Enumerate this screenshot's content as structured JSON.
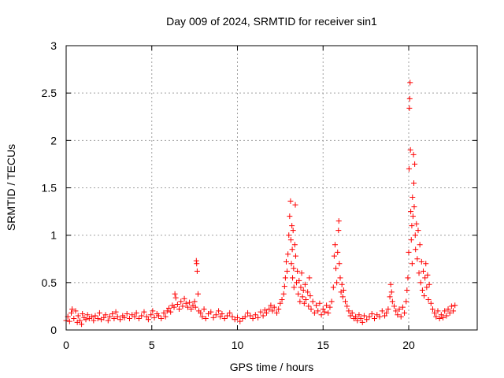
{
  "chart_data": {
    "type": "scatter",
    "title": "Day 009 of 2024, SRMTID for receiver sin1",
    "xlabel": "GPS time / hours",
    "ylabel": "SRMTID / TECUs",
    "xlim": [
      0,
      24
    ],
    "ylim": [
      0,
      3
    ],
    "xticks": [
      0,
      5,
      10,
      15,
      20
    ],
    "xtick_labels": [
      "0",
      "5",
      "10",
      "15",
      "20"
    ],
    "yticks": [
      0,
      0.5,
      1,
      1.5,
      2,
      2.5,
      3
    ],
    "ytick_labels": [
      "0",
      "0.5",
      "1",
      "1.5",
      "2",
      "2.5",
      "3"
    ],
    "grid": true,
    "marker": "+",
    "series": [
      {
        "name": "sin1",
        "color": "#ff0000",
        "points": [
          [
            0.0,
            0.1
          ],
          [
            0.1,
            0.14
          ],
          [
            0.2,
            0.09
          ],
          [
            0.3,
            0.18
          ],
          [
            0.35,
            0.22
          ],
          [
            0.45,
            0.12
          ],
          [
            0.55,
            0.2
          ],
          [
            0.65,
            0.08
          ],
          [
            0.7,
            0.15
          ],
          [
            0.8,
            0.1
          ],
          [
            0.9,
            0.06
          ],
          [
            0.95,
            0.17
          ],
          [
            1.05,
            0.13
          ],
          [
            1.15,
            0.11
          ],
          [
            1.25,
            0.16
          ],
          [
            1.35,
            0.12
          ],
          [
            1.5,
            0.14
          ],
          [
            1.6,
            0.1
          ],
          [
            1.7,
            0.15
          ],
          [
            1.85,
            0.12
          ],
          [
            1.95,
            0.18
          ],
          [
            2.05,
            0.11
          ],
          [
            2.2,
            0.13
          ],
          [
            2.3,
            0.16
          ],
          [
            2.45,
            0.1
          ],
          [
            2.55,
            0.14
          ],
          [
            2.7,
            0.17
          ],
          [
            2.8,
            0.12
          ],
          [
            2.9,
            0.19
          ],
          [
            3.0,
            0.14
          ],
          [
            3.15,
            0.11
          ],
          [
            3.3,
            0.15
          ],
          [
            3.4,
            0.13
          ],
          [
            3.55,
            0.17
          ],
          [
            3.7,
            0.12
          ],
          [
            3.85,
            0.16
          ],
          [
            4.0,
            0.14
          ],
          [
            4.1,
            0.18
          ],
          [
            4.25,
            0.12
          ],
          [
            4.4,
            0.15
          ],
          [
            4.55,
            0.19
          ],
          [
            4.7,
            0.14
          ],
          [
            4.8,
            0.11
          ],
          [
            4.95,
            0.16
          ],
          [
            5.05,
            0.2
          ],
          [
            5.15,
            0.13
          ],
          [
            5.3,
            0.17
          ],
          [
            5.4,
            0.15
          ],
          [
            5.55,
            0.12
          ],
          [
            5.7,
            0.18
          ],
          [
            5.8,
            0.14
          ],
          [
            5.9,
            0.2
          ],
          [
            6.0,
            0.23
          ],
          [
            6.1,
            0.19
          ],
          [
            6.2,
            0.26
          ],
          [
            6.3,
            0.24
          ],
          [
            6.35,
            0.38
          ],
          [
            6.4,
            0.34
          ],
          [
            6.5,
            0.27
          ],
          [
            6.6,
            0.22
          ],
          [
            6.7,
            0.3
          ],
          [
            6.8,
            0.25
          ],
          [
            6.9,
            0.33
          ],
          [
            7.0,
            0.28
          ],
          [
            7.1,
            0.24
          ],
          [
            7.2,
            0.29
          ],
          [
            7.3,
            0.22
          ],
          [
            7.4,
            0.26
          ],
          [
            7.5,
            0.3
          ],
          [
            7.55,
            0.24
          ],
          [
            7.6,
            0.73
          ],
          [
            7.62,
            0.7
          ],
          [
            7.65,
            0.62
          ],
          [
            7.7,
            0.38
          ],
          [
            7.75,
            0.2
          ],
          [
            7.85,
            0.18
          ],
          [
            7.95,
            0.14
          ],
          [
            8.05,
            0.22
          ],
          [
            8.15,
            0.12
          ],
          [
            8.3,
            0.17
          ],
          [
            8.45,
            0.19
          ],
          [
            8.6,
            0.13
          ],
          [
            8.75,
            0.16
          ],
          [
            8.9,
            0.2
          ],
          [
            9.0,
            0.14
          ],
          [
            9.1,
            0.17
          ],
          [
            9.25,
            0.12
          ],
          [
            9.4,
            0.15
          ],
          [
            9.55,
            0.18
          ],
          [
            9.7,
            0.14
          ],
          [
            9.85,
            0.11
          ],
          [
            10.0,
            0.13
          ],
          [
            10.15,
            0.09
          ],
          [
            10.3,
            0.12
          ],
          [
            10.45,
            0.14
          ],
          [
            10.6,
            0.18
          ],
          [
            10.75,
            0.15
          ],
          [
            10.9,
            0.12
          ],
          [
            11.05,
            0.16
          ],
          [
            11.2,
            0.13
          ],
          [
            11.35,
            0.19
          ],
          [
            11.5,
            0.15
          ],
          [
            11.6,
            0.21
          ],
          [
            11.7,
            0.18
          ],
          [
            11.85,
            0.22
          ],
          [
            11.95,
            0.26
          ],
          [
            12.05,
            0.2
          ],
          [
            12.15,
            0.24
          ],
          [
            12.3,
            0.18
          ],
          [
            12.4,
            0.22
          ],
          [
            12.5,
            0.28
          ],
          [
            12.6,
            0.32
          ],
          [
            12.7,
            0.38
          ],
          [
            12.75,
            0.46
          ],
          [
            12.8,
            0.55
          ],
          [
            12.85,
            0.72
          ],
          [
            12.9,
            0.62
          ],
          [
            12.95,
            0.8
          ],
          [
            13.0,
            1.0
          ],
          [
            13.05,
            1.2
          ],
          [
            13.1,
            1.36
          ],
          [
            13.12,
            0.95
          ],
          [
            13.15,
            0.7
          ],
          [
            13.18,
            1.1
          ],
          [
            13.2,
            0.85
          ],
          [
            13.22,
            0.55
          ],
          [
            13.25,
            1.05
          ],
          [
            13.28,
            0.65
          ],
          [
            13.3,
            0.45
          ],
          [
            13.35,
            0.9
          ],
          [
            13.38,
            1.32
          ],
          [
            13.4,
            0.78
          ],
          [
            13.45,
            0.5
          ],
          [
            13.5,
            0.62
          ],
          [
            13.55,
            0.38
          ],
          [
            13.6,
            0.52
          ],
          [
            13.65,
            0.3
          ],
          [
            13.7,
            0.45
          ],
          [
            13.75,
            0.6
          ],
          [
            13.8,
            0.35
          ],
          [
            13.85,
            0.42
          ],
          [
            13.9,
            0.28
          ],
          [
            13.95,
            0.48
          ],
          [
            14.0,
            0.32
          ],
          [
            14.1,
            0.4
          ],
          [
            14.15,
            0.25
          ],
          [
            14.2,
            0.55
          ],
          [
            14.25,
            0.36
          ],
          [
            14.3,
            0.22
          ],
          [
            14.4,
            0.3
          ],
          [
            14.5,
            0.18
          ],
          [
            14.6,
            0.26
          ],
          [
            14.7,
            0.2
          ],
          [
            14.8,
            0.28
          ],
          [
            14.9,
            0.16
          ],
          [
            15.0,
            0.22
          ],
          [
            15.1,
            0.19
          ],
          [
            15.2,
            0.26
          ],
          [
            15.3,
            0.18
          ],
          [
            15.4,
            0.24
          ],
          [
            15.5,
            0.3
          ],
          [
            15.6,
            0.45
          ],
          [
            15.65,
            0.78
          ],
          [
            15.7,
            0.9
          ],
          [
            15.75,
            0.65
          ],
          [
            15.8,
            0.5
          ],
          [
            15.85,
            0.82
          ],
          [
            15.9,
            1.05
          ],
          [
            15.92,
            1.15
          ],
          [
            15.95,
            0.7
          ],
          [
            16.0,
            0.55
          ],
          [
            16.05,
            0.4
          ],
          [
            16.1,
            0.48
          ],
          [
            16.15,
            0.35
          ],
          [
            16.2,
            0.42
          ],
          [
            16.3,
            0.3
          ],
          [
            16.4,
            0.25
          ],
          [
            16.5,
            0.2
          ],
          [
            16.6,
            0.15
          ],
          [
            16.7,
            0.18
          ],
          [
            16.8,
            0.12
          ],
          [
            16.9,
            0.14
          ],
          [
            17.0,
            0.1
          ],
          [
            17.1,
            0.16
          ],
          [
            17.2,
            0.12
          ],
          [
            17.3,
            0.08
          ],
          [
            17.4,
            0.15
          ],
          [
            17.55,
            0.11
          ],
          [
            17.7,
            0.14
          ],
          [
            17.85,
            0.17
          ],
          [
            18.0,
            0.12
          ],
          [
            18.15,
            0.16
          ],
          [
            18.3,
            0.14
          ],
          [
            18.45,
            0.2
          ],
          [
            18.6,
            0.15
          ],
          [
            18.7,
            0.18
          ],
          [
            18.8,
            0.22
          ],
          [
            18.9,
            0.35
          ],
          [
            18.95,
            0.48
          ],
          [
            19.0,
            0.4
          ],
          [
            19.05,
            0.3
          ],
          [
            19.15,
            0.25
          ],
          [
            19.25,
            0.2
          ],
          [
            19.35,
            0.16
          ],
          [
            19.45,
            0.22
          ],
          [
            19.55,
            0.14
          ],
          [
            19.65,
            0.24
          ],
          [
            19.75,
            0.18
          ],
          [
            19.85,
            0.3
          ],
          [
            19.9,
            0.42
          ],
          [
            19.95,
            0.55
          ],
          [
            20.0,
            0.82
          ],
          [
            20.02,
            1.7
          ],
          [
            20.04,
            2.34
          ],
          [
            20.06,
            2.44
          ],
          [
            20.08,
            2.61
          ],
          [
            20.1,
            1.9
          ],
          [
            20.12,
            1.25
          ],
          [
            20.15,
            0.95
          ],
          [
            20.18,
            1.1
          ],
          [
            20.2,
            0.7
          ],
          [
            20.22,
            1.4
          ],
          [
            20.25,
            1.2
          ],
          [
            20.28,
            1.85
          ],
          [
            20.3,
            1.55
          ],
          [
            20.32,
            1.3
          ],
          [
            20.35,
            1.75
          ],
          [
            20.38,
            1.0
          ],
          [
            20.4,
            0.85
          ],
          [
            20.45,
            1.12
          ],
          [
            20.5,
            0.75
          ],
          [
            20.55,
            1.05
          ],
          [
            20.6,
            0.6
          ],
          [
            20.65,
            0.9
          ],
          [
            20.7,
            0.5
          ],
          [
            20.75,
            0.72
          ],
          [
            20.8,
            0.42
          ],
          [
            20.85,
            0.62
          ],
          [
            20.9,
            0.36
          ],
          [
            20.95,
            0.55
          ],
          [
            21.0,
            0.7
          ],
          [
            21.05,
            0.45
          ],
          [
            21.1,
            0.58
          ],
          [
            21.15,
            0.32
          ],
          [
            21.2,
            0.48
          ],
          [
            21.3,
            0.28
          ],
          [
            21.4,
            0.22
          ],
          [
            21.5,
            0.18
          ],
          [
            21.6,
            0.14
          ],
          [
            21.7,
            0.2
          ],
          [
            21.8,
            0.12
          ],
          [
            21.9,
            0.16
          ],
          [
            22.0,
            0.13
          ],
          [
            22.1,
            0.2
          ],
          [
            22.2,
            0.15
          ],
          [
            22.3,
            0.22
          ],
          [
            22.4,
            0.18
          ],
          [
            22.5,
            0.25
          ],
          [
            22.6,
            0.2
          ],
          [
            22.7,
            0.26
          ]
        ]
      }
    ]
  }
}
